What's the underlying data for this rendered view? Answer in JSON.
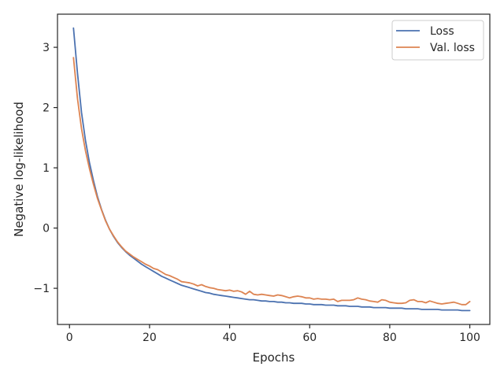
{
  "chart_data": {
    "type": "line",
    "xlabel": "Epochs",
    "ylabel": "Negative log-likelihood",
    "xlim": [
      -3,
      105
    ],
    "ylim": [
      -1.6,
      3.55
    ],
    "xticks": [
      0,
      20,
      40,
      60,
      80,
      100
    ],
    "yticks": [
      -1,
      0,
      1,
      2,
      3
    ],
    "xtick_labels": [
      "0",
      "20",
      "40",
      "60",
      "80",
      "100"
    ],
    "ytick_labels": [
      "−1",
      "0",
      "1",
      "2",
      "3"
    ],
    "grid": false,
    "legend_position": "top-right",
    "series": [
      {
        "name": "Loss",
        "color": "#4c72b0",
        "x": [
          1,
          2,
          3,
          4,
          5,
          6,
          7,
          8,
          9,
          10,
          11,
          12,
          13,
          14,
          15,
          16,
          17,
          18,
          19,
          20,
          21,
          22,
          23,
          24,
          25,
          26,
          27,
          28,
          29,
          30,
          31,
          32,
          33,
          34,
          35,
          36,
          37,
          38,
          39,
          40,
          41,
          42,
          43,
          44,
          45,
          46,
          47,
          48,
          49,
          50,
          51,
          52,
          53,
          54,
          55,
          56,
          57,
          58,
          59,
          60,
          61,
          62,
          63,
          64,
          65,
          66,
          67,
          68,
          69,
          70,
          71,
          72,
          73,
          74,
          75,
          76,
          77,
          78,
          79,
          80,
          81,
          82,
          83,
          84,
          85,
          86,
          87,
          88,
          89,
          90,
          91,
          92,
          93,
          94,
          95,
          96,
          97,
          98,
          99,
          100
        ],
        "values": [
          3.32,
          2.57,
          1.92,
          1.45,
          1.08,
          0.78,
          0.52,
          0.31,
          0.13,
          -0.02,
          -0.14,
          -0.24,
          -0.32,
          -0.39,
          -0.45,
          -0.5,
          -0.55,
          -0.6,
          -0.64,
          -0.68,
          -0.72,
          -0.76,
          -0.8,
          -0.83,
          -0.86,
          -0.89,
          -0.92,
          -0.95,
          -0.97,
          -0.99,
          -1.01,
          -1.03,
          -1.05,
          -1.07,
          -1.08,
          -1.1,
          -1.11,
          -1.12,
          -1.13,
          -1.14,
          -1.15,
          -1.16,
          -1.17,
          -1.18,
          -1.19,
          -1.19,
          -1.2,
          -1.21,
          -1.21,
          -1.22,
          -1.22,
          -1.23,
          -1.23,
          -1.24,
          -1.24,
          -1.25,
          -1.25,
          -1.25,
          -1.26,
          -1.26,
          -1.27,
          -1.27,
          -1.27,
          -1.28,
          -1.28,
          -1.28,
          -1.29,
          -1.29,
          -1.29,
          -1.3,
          -1.3,
          -1.3,
          -1.31,
          -1.31,
          -1.31,
          -1.32,
          -1.32,
          -1.32,
          -1.32,
          -1.33,
          -1.33,
          -1.33,
          -1.33,
          -1.34,
          -1.34,
          -1.34,
          -1.34,
          -1.35,
          -1.35,
          -1.35,
          -1.35,
          -1.35,
          -1.36,
          -1.36,
          -1.36,
          -1.36,
          -1.36,
          -1.37,
          -1.37,
          -1.37
        ]
      },
      {
        "name": "Val. loss",
        "color": "#dd8452",
        "x": [
          1,
          2,
          3,
          4,
          5,
          6,
          7,
          8,
          9,
          10,
          11,
          12,
          13,
          14,
          15,
          16,
          17,
          18,
          19,
          20,
          21,
          22,
          23,
          24,
          25,
          26,
          27,
          28,
          29,
          30,
          31,
          32,
          33,
          34,
          35,
          36,
          37,
          38,
          39,
          40,
          41,
          42,
          43,
          44,
          45,
          46,
          47,
          48,
          49,
          50,
          51,
          52,
          53,
          54,
          55,
          56,
          57,
          58,
          59,
          60,
          61,
          62,
          63,
          64,
          65,
          66,
          67,
          68,
          69,
          70,
          71,
          72,
          73,
          74,
          75,
          76,
          77,
          78,
          79,
          80,
          81,
          82,
          83,
          84,
          85,
          86,
          87,
          88,
          89,
          90,
          91,
          92,
          93,
          94,
          95,
          96,
          97,
          98,
          99,
          100
        ],
        "values": [
          2.83,
          2.15,
          1.65,
          1.28,
          0.98,
          0.72,
          0.49,
          0.3,
          0.12,
          -0.02,
          -0.13,
          -0.23,
          -0.31,
          -0.38,
          -0.43,
          -0.48,
          -0.52,
          -0.56,
          -0.6,
          -0.63,
          -0.67,
          -0.69,
          -0.73,
          -0.77,
          -0.79,
          -0.82,
          -0.85,
          -0.89,
          -0.9,
          -0.91,
          -0.93,
          -0.96,
          -0.94,
          -0.97,
          -0.99,
          -1.0,
          -1.02,
          -1.03,
          -1.04,
          -1.03,
          -1.05,
          -1.04,
          -1.06,
          -1.1,
          -1.05,
          -1.1,
          -1.11,
          -1.1,
          -1.11,
          -1.12,
          -1.13,
          -1.11,
          -1.12,
          -1.14,
          -1.16,
          -1.14,
          -1.13,
          -1.14,
          -1.16,
          -1.16,
          -1.18,
          -1.17,
          -1.18,
          -1.18,
          -1.19,
          -1.18,
          -1.22,
          -1.2,
          -1.2,
          -1.2,
          -1.19,
          -1.16,
          -1.18,
          -1.19,
          -1.21,
          -1.22,
          -1.23,
          -1.19,
          -1.2,
          -1.23,
          -1.24,
          -1.25,
          -1.25,
          -1.24,
          -1.2,
          -1.19,
          -1.22,
          -1.22,
          -1.24,
          -1.21,
          -1.23,
          -1.25,
          -1.26,
          -1.25,
          -1.24,
          -1.23,
          -1.25,
          -1.27,
          -1.27,
          -1.22
        ]
      }
    ]
  }
}
